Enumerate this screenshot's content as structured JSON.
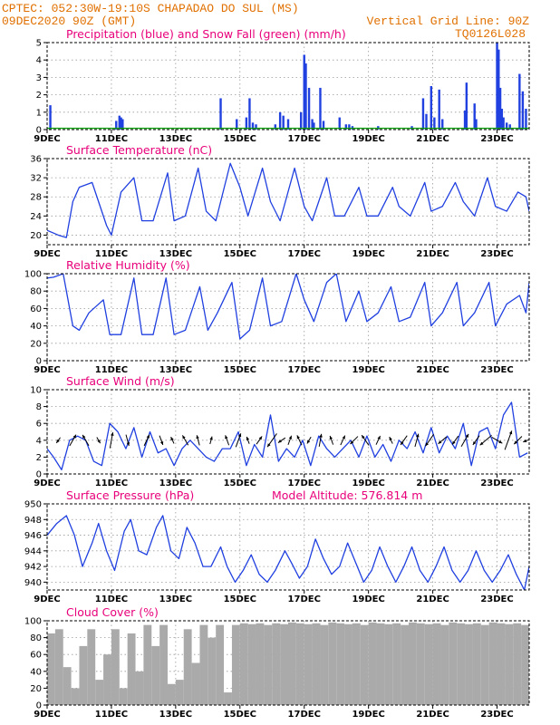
{
  "header": {
    "line1": "CPTEC:  052:30W-19:10S  CHAPADAO DO SUL (MS)",
    "line2": "09DEC2020 90Z (GMT)",
    "grid_note": "Vertical Grid Line: 90Z",
    "run_code": "TQ0126L028"
  },
  "colors": {
    "header": "#e07000",
    "title": "#e8007a",
    "line": "#2040e0",
    "snow": "#10a010",
    "cloud": "#aaaaaa",
    "wind_arrow": "#000000"
  },
  "x_axis": {
    "ticks": [
      "9DEC",
      "11DEC",
      "13DEC",
      "15DEC",
      "17DEC",
      "19DEC",
      "21DEC",
      "23DEC"
    ],
    "tick_days": [
      0,
      2,
      4,
      6,
      8,
      10,
      12,
      14
    ],
    "start_day": 0,
    "end_day": 15,
    "grid": "dotted"
  },
  "chart_data": [
    {
      "type": "bar",
      "title": "Precipitation (blue) and Snow Fall (green) (mm/h)",
      "ylim": [
        0,
        5
      ],
      "yticks": [
        0,
        1,
        2,
        3,
        4,
        5
      ],
      "series": [
        {
          "name": "Precipitation",
          "x": [
            0.1,
            2.15,
            2.25,
            2.3,
            2.35,
            5.4,
            5.9,
            6.2,
            6.3,
            6.4,
            6.5,
            7.1,
            7.25,
            7.35,
            7.5,
            7.9,
            8.0,
            8.05,
            8.15,
            8.25,
            8.3,
            8.5,
            8.6,
            9.1,
            9.3,
            9.4,
            9.5,
            10.3,
            11.35,
            11.7,
            11.8,
            11.95,
            12.05,
            12.2,
            12.3,
            13.0,
            13.05,
            13.3,
            13.35,
            14.0,
            14.05,
            14.1,
            14.15,
            14.2,
            14.3,
            14.4,
            14.7,
            14.8,
            14.9
          ],
          "values": [
            1.4,
            0.5,
            0.8,
            0.7,
            0.6,
            1.8,
            0.6,
            0.7,
            1.8,
            0.4,
            0.3,
            0.3,
            1.0,
            0.8,
            0.6,
            1.0,
            4.3,
            3.8,
            2.4,
            0.6,
            0.4,
            2.4,
            0.5,
            0.7,
            0.3,
            0.3,
            0.2,
            0.2,
            0.2,
            1.8,
            0.9,
            2.5,
            0.7,
            2.3,
            0.6,
            1.1,
            2.7,
            1.5,
            0.6,
            5.0,
            4.6,
            2.4,
            1.2,
            0.7,
            0.4,
            0.3,
            3.2,
            2.2,
            1.2
          ]
        },
        {
          "name": "Snow Fall",
          "x": [
            0,
            15
          ],
          "values": [
            0.05,
            0.05
          ]
        }
      ]
    },
    {
      "type": "line",
      "title": "Surface Temperature (nC)",
      "ylim": [
        18,
        36
      ],
      "yticks": [
        20,
        24,
        28,
        32,
        36
      ],
      "series": [
        {
          "name": "Temperature",
          "x": [
            0,
            0.35,
            0.6,
            0.8,
            1.0,
            1.4,
            1.85,
            2.0,
            2.3,
            2.7,
            2.95,
            3.3,
            3.75,
            3.95,
            4.3,
            4.7,
            4.95,
            5.25,
            5.7,
            6.0,
            6.25,
            6.7,
            6.95,
            7.25,
            7.7,
            8.0,
            8.25,
            8.7,
            8.95,
            9.25,
            9.7,
            9.95,
            10.3,
            10.75,
            10.95,
            11.3,
            11.75,
            11.95,
            12.3,
            12.7,
            12.95,
            13.3,
            13.7,
            13.95,
            14.3,
            14.65,
            14.9,
            15.0
          ],
          "values": [
            21,
            20,
            19.5,
            27,
            30,
            31,
            22,
            20,
            29,
            32,
            23,
            23,
            33,
            23,
            24,
            34,
            25,
            23,
            35,
            30,
            24,
            34,
            27,
            23,
            34,
            26,
            23,
            32,
            24,
            24,
            30,
            24,
            24,
            30,
            26,
            24,
            31,
            25,
            26,
            31,
            27,
            24,
            32,
            26,
            25,
            29,
            28,
            25
          ]
        }
      ]
    },
    {
      "type": "line",
      "title": "Relative Humidity (%)",
      "ylim": [
        0,
        100
      ],
      "yticks": [
        0,
        20,
        40,
        60,
        80,
        100
      ],
      "series": [
        {
          "name": "Relative Humidity",
          "x": [
            0,
            0.2,
            0.5,
            0.8,
            1.0,
            1.3,
            1.75,
            1.95,
            2.3,
            2.7,
            2.95,
            3.3,
            3.7,
            3.95,
            4.3,
            4.75,
            5.0,
            5.3,
            5.75,
            6.0,
            6.3,
            6.7,
            6.95,
            7.3,
            7.75,
            8.0,
            8.3,
            8.7,
            9.0,
            9.3,
            9.7,
            9.95,
            10.3,
            10.7,
            10.95,
            11.3,
            11.75,
            11.95,
            12.3,
            12.75,
            12.95,
            13.3,
            13.75,
            13.95,
            14.3,
            14.7,
            14.9,
            15.0
          ],
          "values": [
            95,
            96,
            100,
            40,
            35,
            55,
            70,
            30,
            30,
            95,
            30,
            30,
            95,
            30,
            35,
            85,
            35,
            55,
            90,
            25,
            35,
            95,
            40,
            45,
            100,
            70,
            45,
            90,
            100,
            45,
            80,
            45,
            55,
            85,
            45,
            50,
            90,
            40,
            55,
            90,
            40,
            55,
            90,
            40,
            65,
            75,
            55,
            90
          ]
        }
      ]
    },
    {
      "type": "line",
      "title": "Surface Wind (m/s)",
      "ylim": [
        0,
        10
      ],
      "yticks": [
        0,
        2,
        4,
        6,
        8,
        10
      ],
      "series": [
        {
          "name": "Wind speed",
          "x": [
            0,
            0.2,
            0.45,
            0.7,
            0.95,
            1.2,
            1.45,
            1.7,
            1.95,
            2.2,
            2.45,
            2.7,
            2.95,
            3.2,
            3.45,
            3.7,
            3.95,
            4.2,
            4.45,
            4.7,
            4.95,
            5.2,
            5.45,
            5.7,
            5.95,
            6.2,
            6.45,
            6.7,
            6.95,
            7.2,
            7.45,
            7.7,
            7.95,
            8.2,
            8.45,
            8.7,
            8.95,
            9.2,
            9.45,
            9.7,
            9.95,
            10.2,
            10.45,
            10.7,
            10.95,
            11.2,
            11.45,
            11.7,
            11.95,
            12.2,
            12.45,
            12.7,
            12.95,
            13.2,
            13.45,
            13.7,
            13.95,
            14.2,
            14.45,
            14.7,
            14.95
          ],
          "values": [
            3,
            2,
            0.5,
            4,
            4.5,
            4,
            1.5,
            1,
            6,
            5,
            3,
            5.5,
            2,
            5,
            2.5,
            3,
            1,
            3,
            4,
            3,
            2,
            1.5,
            3,
            3,
            5,
            1,
            3.5,
            2,
            7,
            1.5,
            3,
            2,
            4,
            1,
            4.5,
            3,
            2,
            3,
            4,
            2,
            4.5,
            2,
            3.5,
            1.5,
            4,
            3,
            5,
            2.5,
            5.5,
            2.5,
            4.5,
            3,
            6,
            1,
            5,
            5.5,
            3,
            7,
            8.5,
            2,
            2.5
          ]
        },
        {
          "name": "Wind direction",
          "x": [
            0.35,
            0.8,
            1.2,
            1.6,
            2.0,
            2.5,
            3.1,
            3.55,
            3.9,
            4.3,
            4.7,
            5.1,
            5.6,
            5.95,
            6.25,
            6.6,
            7.0,
            7.3,
            7.55,
            7.85,
            8.15,
            8.5,
            8.85,
            9.2,
            9.55,
            9.9,
            10.3,
            10.7,
            11.1,
            11.5,
            11.9,
            12.3,
            12.7,
            13.0,
            13.35,
            13.65,
            14.0,
            14.35,
            14.65,
            14.95
          ],
          "values": [
            215,
            30,
            330,
            150,
            10,
            165,
            25,
            160,
            335,
            330,
            345,
            15,
            340,
            20,
            340,
            35,
            215,
            235,
            20,
            335,
            210,
            10,
            340,
            25,
            225,
            325,
            25,
            335,
            215,
            15,
            215,
            230,
            215,
            30,
            215,
            230,
            120,
            20,
            225,
            250
          ]
        }
      ]
    },
    {
      "type": "line",
      "title": "Surface Pressure (hPa)",
      "annotation": "Model Altitude: 576.814  m",
      "ylim": [
        939,
        950
      ],
      "yticks": [
        940,
        942,
        944,
        946,
        948,
        950
      ],
      "series": [
        {
          "name": "Pressure",
          "x": [
            0,
            0.3,
            0.6,
            0.85,
            1.1,
            1.4,
            1.6,
            1.85,
            2.1,
            2.4,
            2.6,
            2.85,
            3.1,
            3.4,
            3.6,
            3.85,
            4.1,
            4.35,
            4.6,
            4.85,
            5.1,
            5.4,
            5.6,
            5.85,
            6.1,
            6.35,
            6.6,
            6.85,
            7.1,
            7.4,
            7.6,
            7.85,
            8.1,
            8.35,
            8.6,
            8.85,
            9.1,
            9.35,
            9.6,
            9.85,
            10.1,
            10.35,
            10.6,
            10.85,
            11.1,
            11.35,
            11.6,
            11.85,
            12.1,
            12.35,
            12.6,
            12.85,
            13.1,
            13.35,
            13.6,
            13.85,
            14.1,
            14.35,
            14.6,
            14.85,
            15.0
          ],
          "values": [
            946,
            947.5,
            948.5,
            946,
            942,
            945,
            947.5,
            944,
            941.5,
            946.5,
            948,
            944,
            943.5,
            947,
            948.5,
            944,
            943,
            947,
            945,
            942,
            942,
            944.5,
            942,
            940,
            941.5,
            943.5,
            941,
            940,
            941.5,
            944,
            942.5,
            940.5,
            942,
            945.5,
            943,
            941,
            942,
            945,
            942.5,
            940,
            941.5,
            944.5,
            942,
            940,
            942,
            944.5,
            941.5,
            940,
            942,
            944.5,
            941.5,
            940,
            941.5,
            944,
            941.5,
            940,
            941.5,
            943.5,
            941,
            939,
            942
          ]
        }
      ]
    },
    {
      "type": "area",
      "title": "Cloud Cover (%)",
      "ylim": [
        0,
        100
      ],
      "yticks": [
        0,
        20,
        40,
        60,
        80,
        100
      ],
      "series": [
        {
          "name": "Cloud Cover",
          "x": [
            0,
            0.25,
            0.5,
            0.75,
            1.0,
            1.25,
            1.5,
            1.75,
            2.0,
            2.25,
            2.5,
            2.75,
            3.0,
            3.25,
            3.5,
            3.75,
            4.0,
            4.25,
            4.5,
            4.75,
            5.0,
            5.25,
            5.5,
            5.75,
            6.0,
            6.25,
            6.5,
            6.75,
            7.0,
            7.25,
            7.5,
            7.75,
            8.0,
            8.25,
            8.5,
            8.75,
            9.0,
            9.25,
            9.5,
            9.75,
            10.0,
            10.25,
            10.5,
            10.75,
            11.0,
            11.25,
            11.5,
            11.75,
            12.0,
            12.25,
            12.5,
            12.75,
            13.0,
            13.25,
            13.5,
            13.75,
            14.0,
            14.25,
            14.5,
            14.75,
            15.0
          ],
          "values": [
            85,
            90,
            45,
            20,
            70,
            90,
            30,
            60,
            90,
            20,
            85,
            40,
            95,
            70,
            95,
            25,
            30,
            90,
            50,
            95,
            80,
            95,
            15,
            95,
            97,
            96,
            97,
            95,
            97,
            96,
            98,
            97,
            96,
            97,
            95,
            98,
            97,
            96,
            97,
            95,
            98,
            97,
            96,
            97,
            95,
            98,
            97,
            96,
            97,
            95,
            98,
            97,
            96,
            97,
            95,
            98,
            97,
            96,
            97,
            95,
            98
          ]
        }
      ]
    }
  ]
}
